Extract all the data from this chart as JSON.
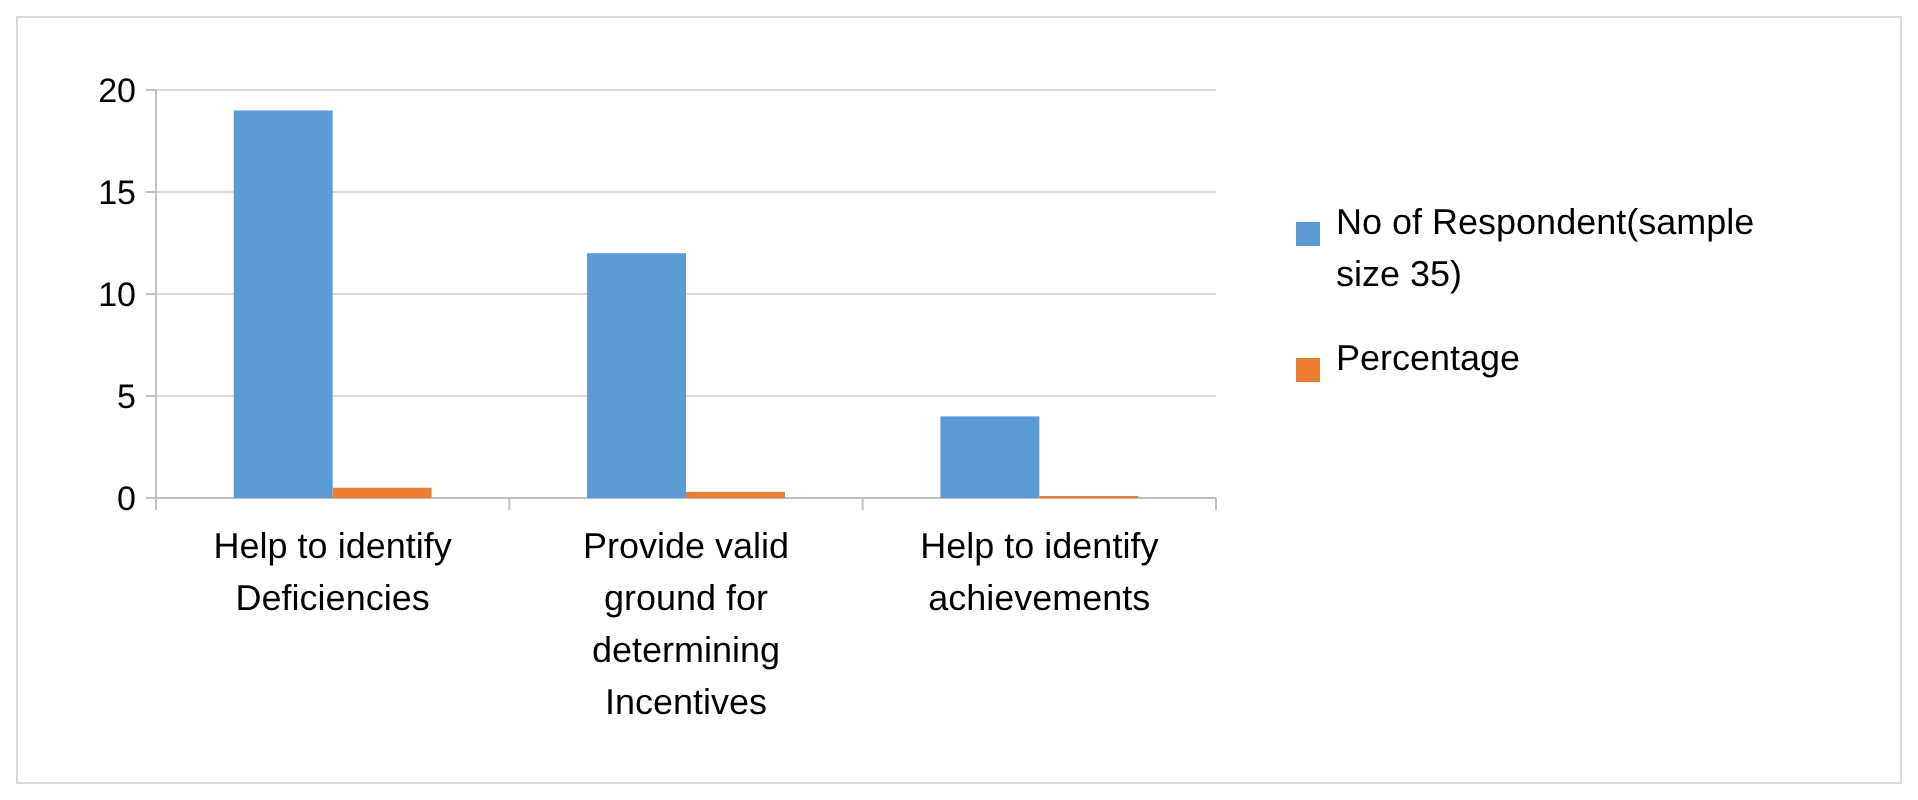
{
  "chart_data": {
    "type": "bar",
    "categories": [
      "Help to identify Deficiencies",
      "Provide valid ground for determining Incentives",
      "Help to identify achievements"
    ],
    "series": [
      {
        "name": "No of Respondent(sample size 35)",
        "color": "#5b9bd5",
        "values": [
          19,
          12,
          4
        ]
      },
      {
        "name": "Percentage",
        "color": "#ed7d31",
        "values": [
          0.5,
          0.3,
          0.1
        ]
      }
    ],
    "ylim": [
      0,
      20
    ],
    "yticks": [
      0,
      5,
      10,
      15,
      20
    ],
    "grid": "y",
    "legend": "right"
  }
}
